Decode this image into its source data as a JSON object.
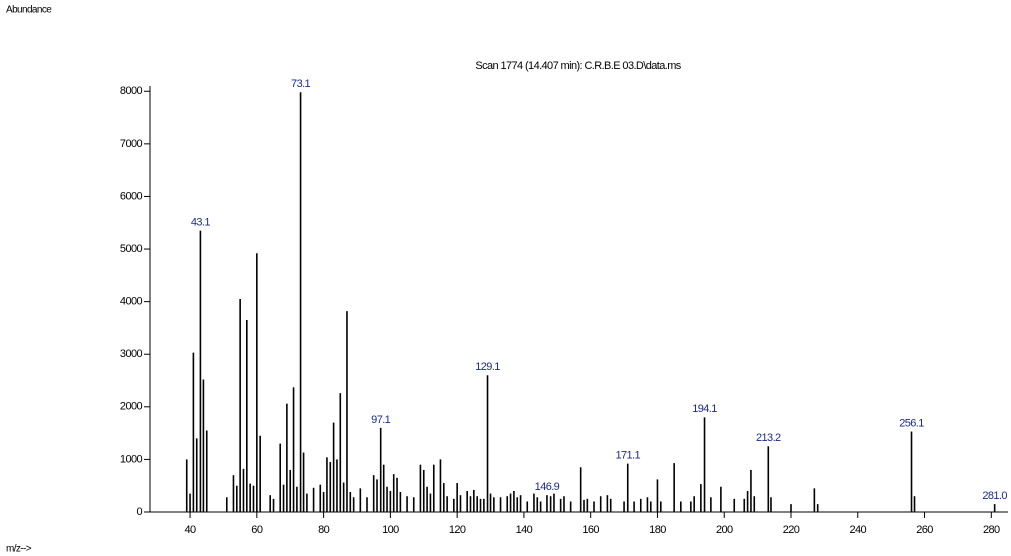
{
  "chart_data": {
    "type": "spectrum",
    "title": "Scan 1774 (14.407 min): C.R.B.E 03.D\\data.ms",
    "y_label": "Abundance",
    "x_label": "m/z-->",
    "color": "#000000",
    "label_color": "#1a2a8c",
    "xlim": [
      28,
      285
    ],
    "xticks": [
      40,
      60,
      80,
      100,
      120,
      140,
      160,
      180,
      200,
      220,
      240,
      260,
      280
    ],
    "ylim": [
      0,
      8100
    ],
    "yticks": [
      0,
      1000,
      2000,
      3000,
      4000,
      5000,
      6000,
      7000,
      8000
    ],
    "x": [
      39,
      40,
      41,
      42,
      43.1,
      44,
      45,
      51,
      53,
      54,
      55,
      56,
      57,
      58,
      59,
      60,
      61,
      64,
      65,
      67,
      68,
      69,
      70,
      71,
      72,
      73.1,
      74,
      75,
      77,
      79,
      80,
      81,
      82,
      83,
      84,
      85,
      86,
      87,
      88,
      89,
      91,
      93,
      95,
      96,
      97.1,
      98,
      99,
      100,
      101,
      102,
      103,
      105,
      107,
      109,
      110,
      111,
      112,
      113,
      115,
      116,
      117,
      119,
      120,
      121,
      123,
      124,
      125,
      126,
      127,
      128,
      129.1,
      130,
      131,
      133,
      135,
      136,
      137,
      138,
      139,
      141,
      143,
      144,
      145,
      146.9,
      148,
      149,
      151,
      152,
      154,
      157,
      158,
      159,
      161,
      163,
      165,
      166,
      170,
      171.1,
      173,
      175,
      177,
      178,
      180,
      181,
      185,
      187,
      190,
      191,
      193,
      194.1,
      196,
      199,
      203,
      206,
      207,
      208,
      209,
      213.2,
      214,
      220,
      227,
      228,
      256.1,
      257,
      281.0
    ],
    "values": [
      1000,
      350,
      3030,
      1400,
      5350,
      2520,
      1550,
      280,
      700,
      500,
      4050,
      820,
      3650,
      540,
      500,
      4920,
      1450,
      320,
      250,
      1300,
      520,
      2060,
      800,
      2370,
      480,
      7980,
      1130,
      350,
      460,
      520,
      380,
      1040,
      950,
      1700,
      1000,
      2260,
      560,
      3820,
      380,
      280,
      450,
      280,
      700,
      620,
      1600,
      900,
      480,
      400,
      720,
      650,
      380,
      300,
      280,
      900,
      800,
      480,
      350,
      900,
      1000,
      550,
      300,
      250,
      550,
      320,
      400,
      300,
      420,
      300,
      250,
      250,
      2600,
      350,
      280,
      280,
      300,
      350,
      400,
      280,
      320,
      200,
      350,
      280,
      200,
      320,
      300,
      350,
      250,
      300,
      200,
      850,
      230,
      250,
      200,
      300,
      320,
      250,
      200,
      920,
      200,
      250,
      280,
      200,
      620,
      200,
      930,
      200,
      200,
      300,
      530,
      1800,
      280,
      480,
      250,
      250,
      400,
      800,
      300,
      1250,
      280,
      150,
      450,
      150,
      1530,
      300,
      150
    ],
    "x_labels": [
      null,
      null,
      null,
      null,
      "43.1",
      null,
      null,
      null,
      null,
      null,
      null,
      null,
      null,
      null,
      null,
      null,
      null,
      null,
      null,
      null,
      null,
      null,
      null,
      null,
      null,
      "73.1",
      null,
      null,
      null,
      null,
      null,
      null,
      null,
      null,
      null,
      null,
      null,
      null,
      null,
      null,
      null,
      null,
      null,
      null,
      "97.1",
      null,
      null,
      null,
      null,
      null,
      null,
      null,
      null,
      null,
      null,
      null,
      null,
      null,
      null,
      null,
      null,
      null,
      null,
      null,
      null,
      null,
      null,
      null,
      null,
      null,
      "129.1",
      null,
      null,
      null,
      null,
      null,
      null,
      null,
      null,
      null,
      null,
      null,
      null,
      "146.9",
      null,
      null,
      null,
      null,
      null,
      null,
      null,
      null,
      null,
      null,
      null,
      null,
      null,
      "171.1",
      null,
      null,
      null,
      null,
      null,
      null,
      null,
      null,
      null,
      null,
      null,
      "194.1",
      null,
      null,
      null,
      null,
      null,
      null,
      null,
      "213.2",
      null,
      null,
      null,
      null,
      "256.1",
      null,
      "281.0"
    ]
  }
}
